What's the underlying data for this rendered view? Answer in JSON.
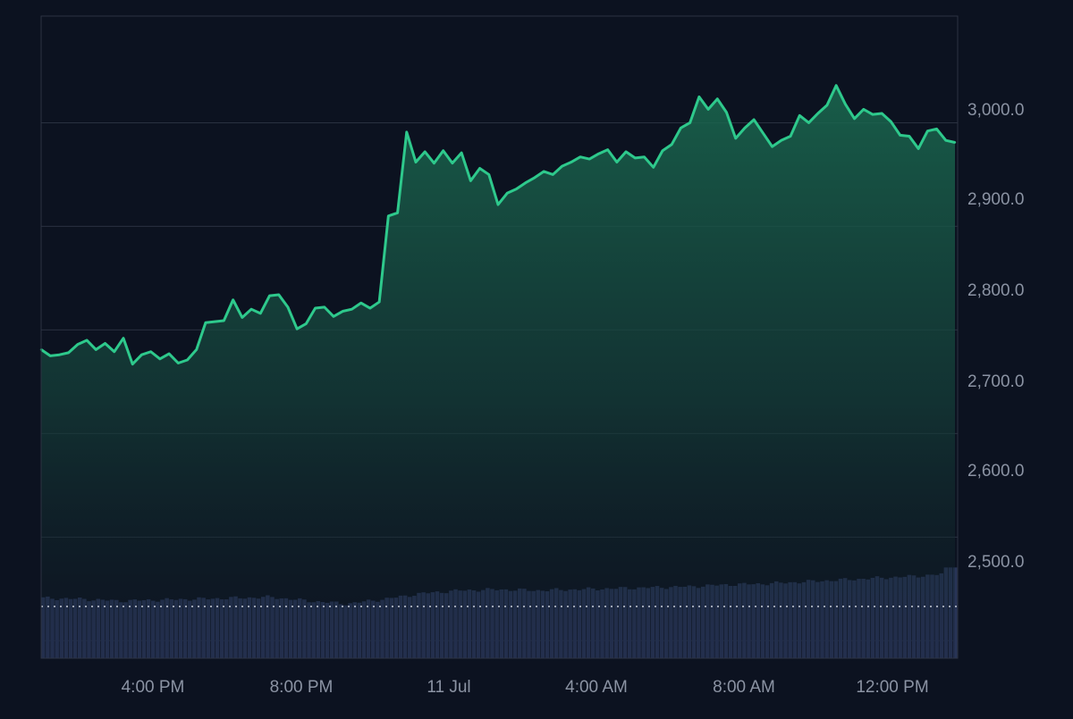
{
  "theme": {
    "background": "#0c1220",
    "grid": "#2a3140",
    "axis_text": "#8b93a3",
    "line": "#2ec98c",
    "volume": "#283457",
    "baseline": "#c9ced8"
  },
  "chart_data": {
    "type": "area",
    "title": "",
    "xlabel": "",
    "ylabel": "",
    "x_range": [
      "10 Jul 13:00",
      "11 Jul 14:00"
    ],
    "x_tick_labels": [
      "4:00 PM",
      "8:00 PM",
      "11 Jul",
      "4:00 AM",
      "8:00 AM",
      "12:00 PM"
    ],
    "y_tick_labels": [
      "3,000.0",
      "2,900.0",
      "2,800.0",
      "2,700.0",
      "2,600.0",
      "2,500.0"
    ],
    "ylim": [
      2483,
      3103
    ],
    "baseline_value": 2533,
    "grid": true,
    "y_axis_side": "right",
    "series": [
      {
        "points": [
          [
            "13:00",
            2781
          ],
          [
            "13:15",
            2775
          ],
          [
            "13:30",
            2776
          ],
          [
            "13:45",
            2778
          ],
          [
            "14:00",
            2786
          ],
          [
            "14:15",
            2790
          ],
          [
            "14:30",
            2781
          ],
          [
            "14:45",
            2787
          ],
          [
            "15:00",
            2779
          ],
          [
            "15:15",
            2792
          ],
          [
            "15:30",
            2767
          ],
          [
            "15:45",
            2776
          ],
          [
            "16:00",
            2779
          ],
          [
            "16:15",
            2772
          ],
          [
            "16:30",
            2777
          ],
          [
            "16:45",
            2768
          ],
          [
            "17:00",
            2771
          ],
          [
            "17:15",
            2781
          ],
          [
            "17:30",
            2807
          ],
          [
            "17:45",
            2808
          ],
          [
            "18:00",
            2809
          ],
          [
            "18:15",
            2829
          ],
          [
            "18:30",
            2812
          ],
          [
            "18:45",
            2820
          ],
          [
            "19:00",
            2816
          ],
          [
            "19:15",
            2833
          ],
          [
            "19:30",
            2834
          ],
          [
            "19:45",
            2822
          ],
          [
            "20:00",
            2801
          ],
          [
            "20:15",
            2806
          ],
          [
            "20:30",
            2821
          ],
          [
            "20:45",
            2822
          ],
          [
            "21:00",
            2813
          ],
          [
            "21:15",
            2818
          ],
          [
            "21:30",
            2820
          ],
          [
            "21:45",
            2826
          ],
          [
            "22:00",
            2821
          ],
          [
            "22:15",
            2827
          ],
          [
            "22:30",
            2910
          ],
          [
            "22:45",
            2913
          ],
          [
            "23:00",
            2991
          ],
          [
            "23:15",
            2962
          ],
          [
            "23:30",
            2972
          ],
          [
            "23:45",
            2961
          ],
          [
            "00:00",
            2973
          ],
          [
            "00:15",
            2961
          ],
          [
            "00:30",
            2971
          ],
          [
            "00:45",
            2944
          ],
          [
            "01:00",
            2956
          ],
          [
            "01:15",
            2950
          ],
          [
            "01:30",
            2921
          ],
          [
            "01:45",
            2932
          ],
          [
            "02:00",
            2936
          ],
          [
            "02:15",
            2942
          ],
          [
            "02:30",
            2947
          ],
          [
            "02:45",
            2953
          ],
          [
            "03:00",
            2950
          ],
          [
            "03:15",
            2958
          ],
          [
            "03:30",
            2962
          ],
          [
            "03:45",
            2967
          ],
          [
            "04:00",
            2965
          ],
          [
            "04:15",
            2970
          ],
          [
            "04:30",
            2974
          ],
          [
            "04:45",
            2962
          ],
          [
            "05:00",
            2972
          ],
          [
            "05:15",
            2966
          ],
          [
            "05:30",
            2967
          ],
          [
            "05:45",
            2957
          ],
          [
            "06:00",
            2973
          ],
          [
            "06:15",
            2979
          ],
          [
            "06:30",
            2995
          ],
          [
            "06:45",
            3000
          ],
          [
            "07:00",
            3025
          ],
          [
            "07:15",
            3013
          ],
          [
            "07:30",
            3023
          ],
          [
            "07:45",
            3010
          ],
          [
            "08:00",
            2985
          ],
          [
            "08:15",
            2995
          ],
          [
            "08:30",
            3003
          ],
          [
            "08:45",
            2990
          ],
          [
            "09:00",
            2977
          ],
          [
            "09:15",
            2983
          ],
          [
            "09:30",
            2987
          ],
          [
            "09:45",
            3007
          ],
          [
            "10:00",
            3000
          ],
          [
            "10:15",
            3009
          ],
          [
            "10:30",
            3017
          ],
          [
            "10:45",
            3036
          ],
          [
            "11:00",
            3018
          ],
          [
            "11:15",
            3004
          ],
          [
            "11:30",
            3013
          ],
          [
            "11:45",
            3008
          ],
          [
            "12:00",
            3009
          ],
          [
            "12:15",
            3001
          ],
          [
            "12:30",
            2988
          ],
          [
            "12:45",
            2987
          ],
          [
            "13:00",
            2975
          ],
          [
            "13:15",
            2992
          ],
          [
            "13:30",
            2994
          ],
          [
            "13:45",
            2983
          ],
          [
            "14:00",
            2981
          ]
        ]
      }
    ],
    "volume": {
      "shown": true,
      "relative_levels": [
        0.63,
        0.62,
        0.6,
        0.61,
        0.62,
        0.63,
        0.64,
        0.6,
        0.57,
        0.62,
        0.68,
        0.71,
        0.72,
        0.71,
        0.72,
        0.73,
        0.74,
        0.75,
        0.77,
        0.78,
        0.8,
        0.82,
        0.84,
        0.86,
        0.89
      ],
      "last_bar_level": 0.95
    }
  }
}
